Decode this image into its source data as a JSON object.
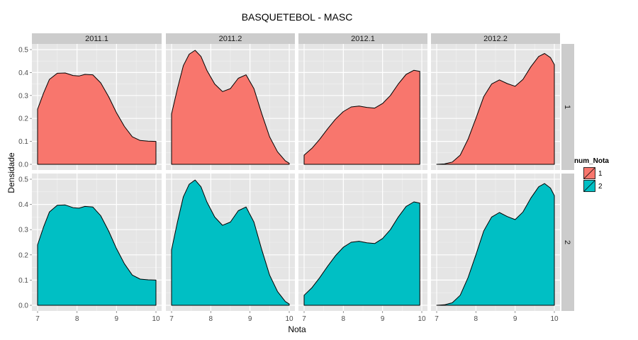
{
  "chart_data": {
    "type": "area",
    "title": "BASQUETEBOL - MASC",
    "xlabel": "Nota",
    "ylabel": "Densidade",
    "xlim": [
      7,
      10
    ],
    "ylim": [
      0,
      0.5
    ],
    "x_ticks": [
      7,
      8,
      9,
      10
    ],
    "x_tick_labels": [
      "7",
      "8",
      "9",
      "10"
    ],
    "y_ticks": [
      0,
      0.1,
      0.2,
      0.3,
      0.4,
      0.5
    ],
    "y_tick_labels": [
      "0.0",
      "0.1",
      "0.2",
      "0.3",
      "0.4",
      "0.5"
    ],
    "grid": true,
    "facet_columns": [
      "2011.1",
      "2011.2",
      "2012.1",
      "2012.2"
    ],
    "facet_rows": [
      "1",
      "2"
    ],
    "legend": {
      "title": "num_Nota",
      "position": "right",
      "entries": [
        {
          "label": "1",
          "color": "#F8766D"
        },
        {
          "label": "2",
          "color": "#00BFC4"
        }
      ]
    },
    "curves": {
      "2011.1": {
        "x": [
          7.0,
          7.15,
          7.3,
          7.5,
          7.7,
          7.9,
          8.05,
          8.2,
          8.4,
          8.6,
          8.8,
          9.0,
          9.2,
          9.4,
          9.6,
          9.8,
          10.0
        ],
        "y": [
          0.24,
          0.31,
          0.37,
          0.397,
          0.398,
          0.387,
          0.385,
          0.392,
          0.39,
          0.355,
          0.295,
          0.225,
          0.165,
          0.12,
          0.104,
          0.101,
          0.1
        ]
      },
      "2011.2": {
        "x": [
          7.0,
          7.15,
          7.3,
          7.45,
          7.6,
          7.75,
          7.9,
          8.1,
          8.3,
          8.5,
          8.7,
          8.9,
          9.1,
          9.3,
          9.5,
          9.7,
          9.9,
          10.0
        ],
        "y": [
          0.22,
          0.33,
          0.43,
          0.48,
          0.497,
          0.47,
          0.41,
          0.35,
          0.317,
          0.33,
          0.375,
          0.39,
          0.33,
          0.22,
          0.12,
          0.055,
          0.015,
          0.005
        ]
      },
      "2012.1": {
        "x": [
          7.0,
          7.2,
          7.4,
          7.6,
          7.8,
          8.0,
          8.2,
          8.4,
          8.6,
          8.8,
          9.0,
          9.2,
          9.4,
          9.6,
          9.8,
          9.95
        ],
        "y": [
          0.04,
          0.07,
          0.11,
          0.155,
          0.197,
          0.23,
          0.25,
          0.254,
          0.248,
          0.245,
          0.265,
          0.3,
          0.35,
          0.392,
          0.41,
          0.405
        ]
      },
      "2012.2": {
        "x": [
          7.0,
          7.2,
          7.4,
          7.6,
          7.8,
          8.0,
          8.2,
          8.4,
          8.6,
          8.8,
          9.0,
          9.2,
          9.4,
          9.6,
          9.75,
          9.9,
          10.0
        ],
        "y": [
          0.0,
          0.002,
          0.01,
          0.04,
          0.11,
          0.2,
          0.295,
          0.35,
          0.368,
          0.352,
          0.34,
          0.37,
          0.425,
          0.47,
          0.483,
          0.465,
          0.435
        ]
      }
    }
  }
}
